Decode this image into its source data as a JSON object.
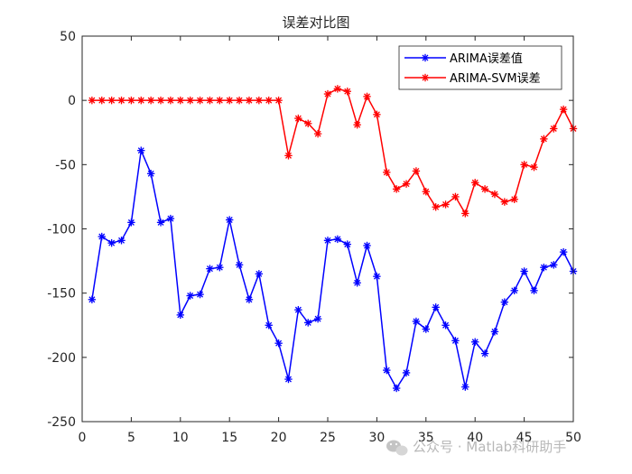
{
  "chart_data": {
    "type": "line",
    "title": "误差对比图",
    "xlabel": "",
    "ylabel": "",
    "xlim": [
      0,
      50
    ],
    "ylim": [
      -250,
      50
    ],
    "xticks": [
      0,
      5,
      10,
      15,
      20,
      25,
      30,
      35,
      40,
      45,
      50
    ],
    "yticks": [
      50,
      0,
      -50,
      -100,
      -150,
      -200,
      -250
    ],
    "grid": false,
    "legend_position": "top-right",
    "x": [
      1,
      2,
      3,
      4,
      5,
      6,
      7,
      8,
      9,
      10,
      11,
      12,
      13,
      14,
      15,
      16,
      17,
      18,
      19,
      20,
      21,
      22,
      23,
      24,
      25,
      26,
      27,
      28,
      29,
      30,
      31,
      32,
      33,
      34,
      35,
      36,
      37,
      38,
      39,
      40,
      41,
      42,
      43,
      44,
      45,
      46,
      47,
      48,
      49,
      50
    ],
    "series": [
      {
        "name": "ARIMA误差值",
        "color": "#0000ff",
        "marker": "asterisk",
        "values": [
          -155,
          -106,
          -111,
          -109,
          -95,
          -39,
          -57,
          -95,
          -92,
          -167,
          -152,
          -151,
          -131,
          -130,
          -93,
          -128,
          -155,
          -135,
          -175,
          -189,
          -217,
          -163,
          -173,
          -170,
          -109,
          -108,
          -112,
          -142,
          -113,
          -137,
          -210,
          -224,
          -212,
          -172,
          -178,
          -161,
          -175,
          -187,
          -223,
          -188,
          -197,
          -180,
          -157,
          -148,
          -133,
          -148,
          -130,
          -128,
          -118,
          -133
        ]
      },
      {
        "name": "ARIMA-SVM误差",
        "color": "#ff0000",
        "marker": "asterisk",
        "values": [
          0,
          0,
          0,
          0,
          0,
          0,
          0,
          0,
          0,
          0,
          0,
          0,
          0,
          0,
          0,
          0,
          0,
          0,
          0,
          0,
          -43,
          -14,
          -18,
          -26,
          5,
          9,
          7,
          -19,
          3,
          -11,
          -56,
          -69,
          -65,
          -55,
          -71,
          -83,
          -81,
          -75,
          -88,
          -64,
          -69,
          -73,
          -79,
          -77,
          -50,
          -52,
          -30,
          -22,
          -7,
          -22
        ]
      }
    ]
  },
  "watermark": {
    "icon": "wechat-icon",
    "text": "公众号 · Matlab科研助手"
  }
}
